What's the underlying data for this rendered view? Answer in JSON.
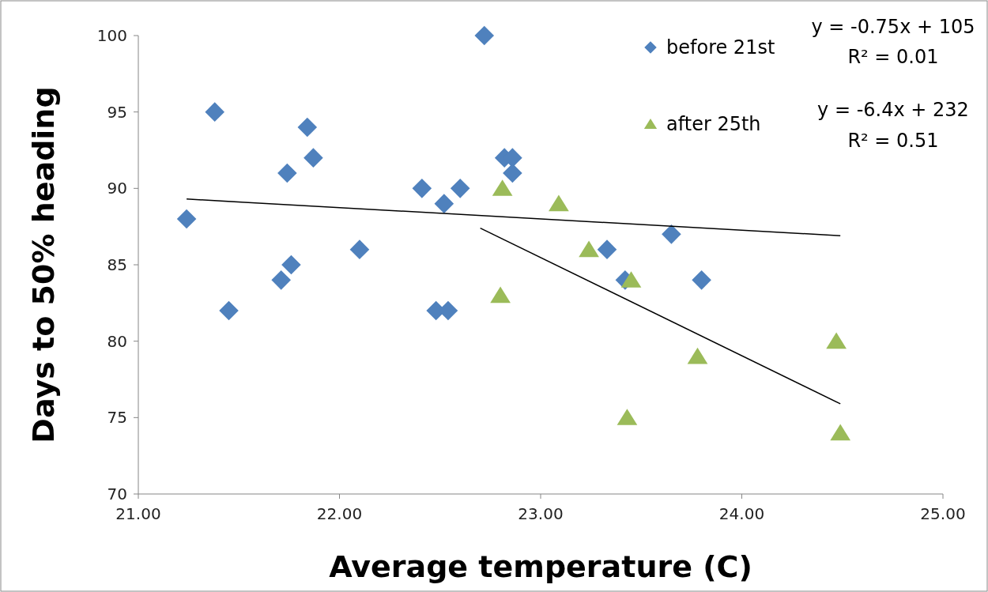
{
  "chart_data": {
    "type": "scatter",
    "xlabel": "Average temperature (C)",
    "ylabel": "Days to 50% heading",
    "xlim": [
      21,
      25
    ],
    "xticks": [
      {
        "value": 21,
        "label": "21.00"
      },
      {
        "value": 22,
        "label": "22.00"
      },
      {
        "value": 23,
        "label": "23.00"
      },
      {
        "value": 24,
        "label": "24.00"
      },
      {
        "value": 25,
        "label": "25.00"
      }
    ],
    "ylim": [
      70,
      100
    ],
    "yticks": [
      70,
      75,
      80,
      85,
      90,
      95,
      100
    ],
    "grid": false,
    "legend": "top right",
    "series": [
      {
        "name": "before 21st",
        "color": "#4f81bd",
        "marker": "diamond",
        "x": [
          21.24,
          21.38,
          21.45,
          21.71,
          21.74,
          21.76,
          21.84,
          21.87,
          22.1,
          22.41,
          22.52,
          22.48,
          22.54,
          22.6,
          22.72,
          22.82,
          22.86,
          22.86,
          23.65,
          23.33,
          23.42,
          23.8
        ],
        "values": [
          88,
          95,
          82,
          84,
          91,
          85,
          94,
          92,
          86,
          90,
          89,
          82,
          82,
          90,
          100,
          92,
          92,
          91,
          87,
          86,
          84,
          84
        ]
      },
      {
        "name": "after 25th",
        "color": "#9bbb59",
        "marker": "triangle",
        "x": [
          22.81,
          23.09,
          23.24,
          23.45,
          22.8,
          23.78,
          24.47,
          23.43,
          24.49
        ],
        "values": [
          90,
          89,
          86,
          84,
          83,
          79,
          80,
          75,
          74
        ]
      },
      {
        "type": "line",
        "color": "#000000",
        "marker": "none",
        "x": [
          21.24,
          24.49
        ],
        "values": [
          89.3,
          86.9
        ]
      },
      {
        "type": "line",
        "color": "#000000",
        "marker": "none",
        "x": [
          22.7,
          24.49
        ],
        "values": [
          87.4,
          75.9
        ]
      }
    ],
    "annotations": [
      "y = -0.75x + 105",
      "R² = 0.01",
      "y = -6.4x + 232",
      "R² = 0.51"
    ]
  }
}
